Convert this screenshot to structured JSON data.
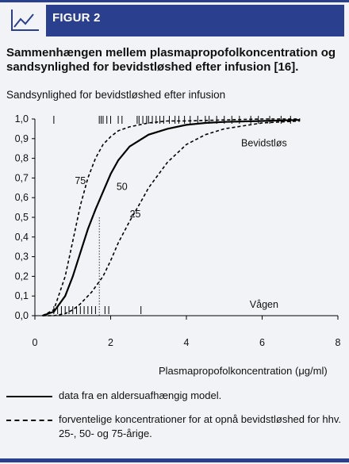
{
  "header": {
    "figure_label": "FIGUR 2",
    "icon": "line-chart-icon",
    "accent_color": "#2b3f8f"
  },
  "caption": "Sammenhængen mellem plasmapropofolkoncentration og sandsynlighed for bevidstløshed efter infusion [16].",
  "legend": {
    "solid": "data fra en aldersuafhængig model.",
    "dashed": "forventelige koncentrationer for at opnå bevidstløshed for hhv. 25-, 50- og 75-årige."
  },
  "chart_data": {
    "type": "line",
    "ylabel": "Sandsynlighed for bevidstløshed efter infusion",
    "xlabel": "Plasmapropofolkoncentration (μg/ml)",
    "xlim": [
      0,
      8
    ],
    "ylim": [
      0,
      1
    ],
    "xticks": [
      "0",
      "2",
      "4",
      "6",
      "8"
    ],
    "yticks": [
      "0,0",
      "0,1",
      "0,2",
      "0,3",
      "0,4",
      "0,5",
      "0,6",
      "0,7",
      "0,8",
      "0,9",
      "1,0"
    ],
    "ytick_values": [
      0,
      0.1,
      0.2,
      0.3,
      0.4,
      0.5,
      0.6,
      0.7,
      0.8,
      0.9,
      1.0
    ],
    "annotations": {
      "unconscious": "Bevidstløs",
      "awake": "Vågen"
    },
    "series": [
      {
        "name": "50",
        "style": "solid",
        "x": [
          0.2,
          0.5,
          0.8,
          1.0,
          1.2,
          1.4,
          1.6,
          1.8,
          2.0,
          2.2,
          2.5,
          3.0,
          3.5,
          4.0,
          4.5,
          5.0,
          6.0,
          7.0
        ],
        "y": [
          0.0,
          0.02,
          0.1,
          0.2,
          0.32,
          0.44,
          0.54,
          0.63,
          0.72,
          0.79,
          0.86,
          0.92,
          0.95,
          0.97,
          0.98,
          0.985,
          0.99,
          0.995
        ]
      },
      {
        "name": "75",
        "style": "dashed",
        "x": [
          0.2,
          0.5,
          0.8,
          1.0,
          1.2,
          1.4,
          1.6,
          1.8,
          2.0,
          2.2,
          2.5,
          3.0,
          3.5,
          4.0,
          5.0,
          6.0,
          7.0
        ],
        "y": [
          0.0,
          0.03,
          0.2,
          0.38,
          0.56,
          0.7,
          0.8,
          0.87,
          0.91,
          0.94,
          0.96,
          0.98,
          0.99,
          0.99,
          0.995,
          1.0,
          1.0
        ]
      },
      {
        "name": "25",
        "style": "dashed",
        "x": [
          0.2,
          0.5,
          0.8,
          1.0,
          1.2,
          1.5,
          1.8,
          2.0,
          2.2,
          2.5,
          2.8,
          3.0,
          3.5,
          4.0,
          4.5,
          5.0,
          6.0,
          7.0
        ],
        "y": [
          0.0,
          0.0,
          0.01,
          0.03,
          0.06,
          0.12,
          0.2,
          0.28,
          0.37,
          0.48,
          0.58,
          0.65,
          0.78,
          0.87,
          0.92,
          0.95,
          0.98,
          0.99
        ]
      }
    ],
    "curve_labels": [
      {
        "text": "75",
        "x": 1.2,
        "y": 0.67
      },
      {
        "text": "50",
        "x": 2.3,
        "y": 0.64
      },
      {
        "text": "25",
        "x": 2.65,
        "y": 0.5
      }
    ],
    "median_marker_x": 1.7,
    "rug_unconscious": [
      0.5,
      1.7,
      1.75,
      1.8,
      1.9,
      2.0,
      2.2,
      2.3,
      2.7,
      2.75,
      2.85,
      2.95,
      3.0,
      3.1,
      3.2,
      3.3,
      3.4,
      3.55,
      3.7,
      3.8,
      3.95,
      4.1,
      4.3,
      4.5,
      4.6,
      4.8,
      5.0,
      5.2,
      5.4,
      5.7,
      5.9,
      6.2,
      6.5,
      6.75
    ],
    "rug_awake": [
      0.5,
      0.6,
      0.7,
      0.8,
      0.9,
      1.0,
      1.1,
      1.2,
      1.3,
      1.4,
      1.5,
      1.6,
      1.85,
      1.95,
      2.8
    ]
  }
}
